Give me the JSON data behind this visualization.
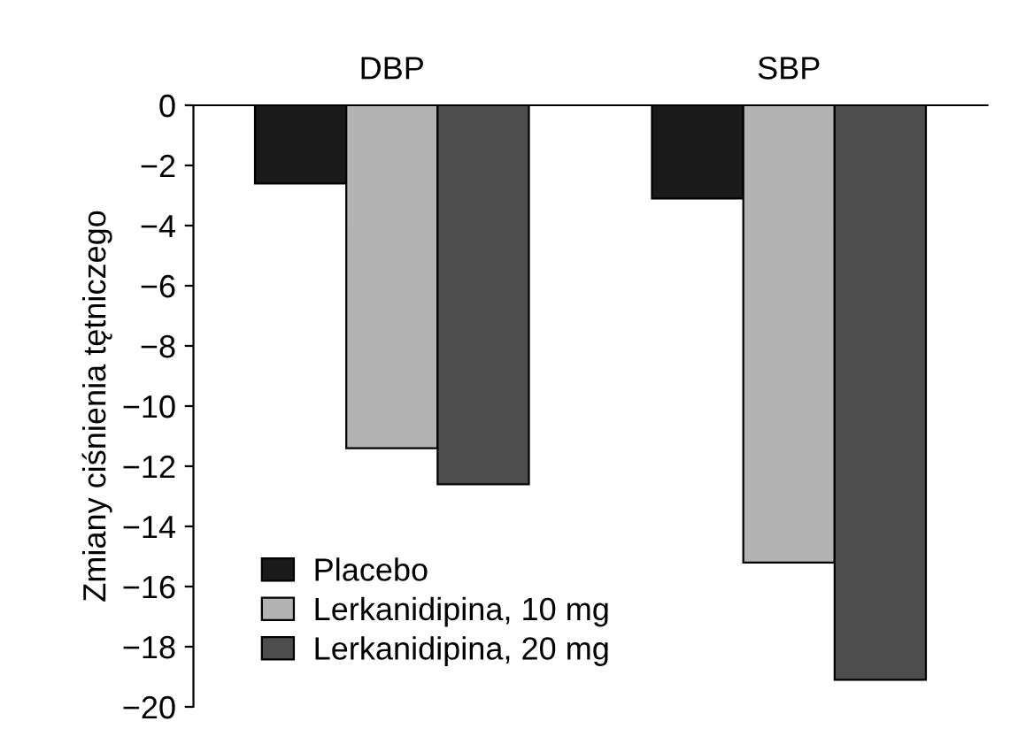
{
  "chart_data": {
    "type": "bar",
    "ylabel": "Zmiany ciśnienia tętniczego",
    "categories": [
      "DBP",
      "SBP"
    ],
    "series": [
      {
        "name": "Placebo",
        "color": "#1a1a1a",
        "values": [
          -2.6,
          -3.1
        ]
      },
      {
        "name": "Lerkanidipina, 10 mg",
        "color": "#b3b3b3",
        "values": [
          -11.4,
          -15.2
        ]
      },
      {
        "name": "Lerkanidipina, 20 mg",
        "color": "#4d4d4d",
        "values": [
          -12.6,
          -19.1
        ]
      }
    ],
    "ylim": [
      -20,
      0
    ],
    "yticks": [
      0,
      {
        "value": -2,
        "label": "−2"
      },
      {
        "value": -4,
        "label": "−4"
      },
      {
        "value": -6,
        "label": "−6"
      },
      {
        "value": -8,
        "label": "−8"
      },
      {
        "value": -10,
        "label": "−10"
      },
      {
        "value": -12,
        "label": "−12"
      },
      {
        "value": -14,
        "label": "−14"
      },
      {
        "value": -16,
        "label": "−16"
      },
      {
        "value": -18,
        "label": "−18"
      },
      {
        "value": -20,
        "label": "−20"
      }
    ],
    "grid": false,
    "legend": "bottom left"
  }
}
